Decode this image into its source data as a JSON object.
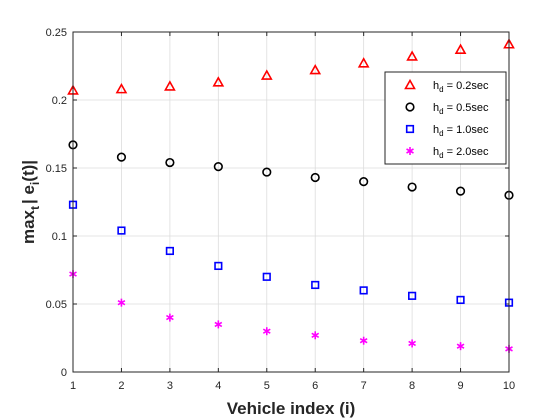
{
  "chart_data": {
    "type": "scatter",
    "title": "",
    "xlabel": "Vehicle index (i)",
    "ylabel": {
      "prefix": "max",
      "sub": "t",
      "body": "| e",
      "sub2": "i",
      "suffix": "(t)|"
    },
    "x": [
      1,
      2,
      3,
      4,
      5,
      6,
      7,
      8,
      9,
      10
    ],
    "xlim": [
      1,
      10
    ],
    "ylim": [
      0,
      0.25
    ],
    "xticks": [
      "1",
      "2",
      "3",
      "4",
      "5",
      "6",
      "7",
      "8",
      "9",
      "10"
    ],
    "yticks": [
      "0",
      "0.05",
      "0.1",
      "0.15",
      "0.2",
      "0.25"
    ],
    "ytick_values": [
      0,
      0.05,
      0.1,
      0.15,
      0.2,
      0.25
    ],
    "grid": true,
    "legend_position": "top-right",
    "series": [
      {
        "legend_main": "h",
        "legend_sub": "d",
        "legend_value": " = 0.2sec",
        "marker": "triangle",
        "color": "#ff0000",
        "values": [
          0.207,
          0.208,
          0.21,
          0.213,
          0.218,
          0.222,
          0.227,
          0.232,
          0.237,
          0.241
        ]
      },
      {
        "legend_main": "h",
        "legend_sub": "d",
        "legend_value": " = 0.5sec",
        "marker": "circle",
        "color": "#000000",
        "values": [
          0.167,
          0.158,
          0.154,
          0.151,
          0.147,
          0.143,
          0.14,
          0.136,
          0.133,
          0.13
        ]
      },
      {
        "legend_main": "h",
        "legend_sub": "d",
        "legend_value": " = 1.0sec",
        "marker": "square",
        "color": "#0000ff",
        "values": [
          0.123,
          0.104,
          0.089,
          0.078,
          0.07,
          0.064,
          0.06,
          0.056,
          0.053,
          0.051
        ]
      },
      {
        "legend_main": "h",
        "legend_sub": "d",
        "legend_value": " = 2.0sec",
        "marker": "asterisk",
        "color": "#ff00ff",
        "values": [
          0.072,
          0.051,
          0.04,
          0.035,
          0.03,
          0.027,
          0.023,
          0.021,
          0.019,
          0.017
        ]
      }
    ]
  }
}
